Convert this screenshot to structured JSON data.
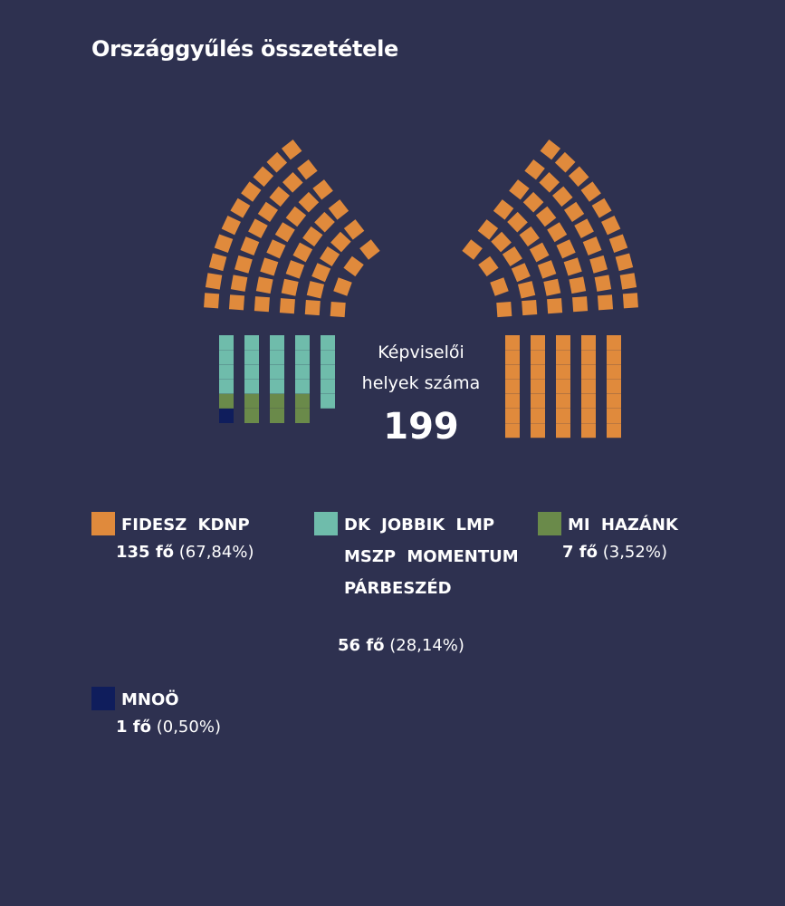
{
  "title": "Országgyűlés összetétele",
  "center": {
    "line1": "Képviselői",
    "line2": "helyek száma",
    "total": "199"
  },
  "colors": {
    "background": "#2e3150",
    "fidesz": "#e08a3c",
    "opposition": "#6fbcab",
    "mihazank": "#6a8a4a",
    "mnoo": "#0f1d5c"
  },
  "legend": [
    {
      "name": "FIDESZ KDNP",
      "count": "135 fő",
      "pct": "(67,84%)",
      "color": "#e08a3c"
    },
    {
      "name": "DK JOBBIK LMP MSZP MOMENTUM PÁRBESZÉD",
      "count": "56 fő",
      "pct": "(28,14%)",
      "color": "#6fbcab"
    },
    {
      "name": "MI HAZÁNK",
      "count": "7 fő",
      "pct": "(3,52%)",
      "color": "#6a8a4a"
    },
    {
      "name": "MNOÖ",
      "count": "1 fő",
      "pct": "(0,50%)",
      "color": "#0f1d5c"
    }
  ],
  "chart_data": {
    "type": "parliament",
    "title": "Országgyűlés összetétele",
    "total_seats": 199,
    "series": [
      {
        "name": "FIDESZ KDNP",
        "seats": 135,
        "percent": 67.84
      },
      {
        "name": "DK JOBBIK LMP MSZP MOMENTUM PÁRBESZÉD",
        "seats": 56,
        "percent": 28.14
      },
      {
        "name": "MI HAZÁNK",
        "seats": 7,
        "percent": 3.52
      },
      {
        "name": "MNOÖ",
        "seats": 1,
        "percent": 0.5
      }
    ]
  }
}
